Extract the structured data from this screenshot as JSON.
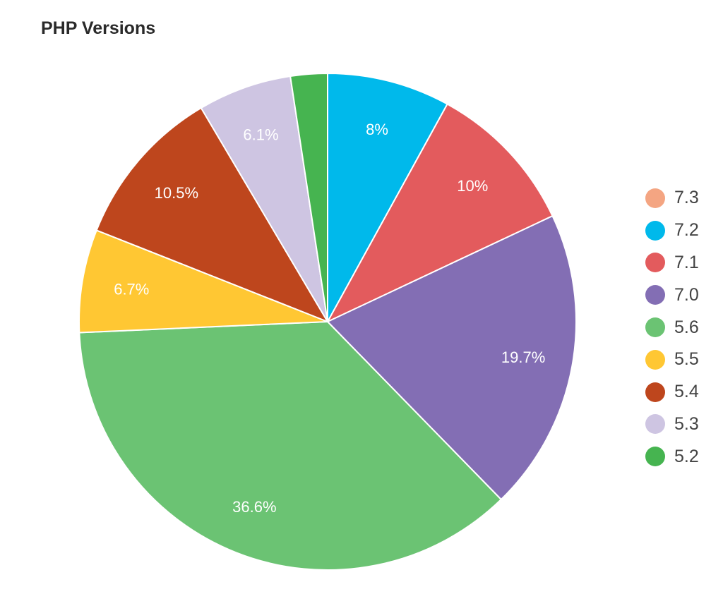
{
  "chart_data": {
    "type": "pie",
    "title": "PHP Versions",
    "legend_position": "right",
    "slices": [
      {
        "label": "7.3",
        "value": 0,
        "color": "#f4a582",
        "data_label": ""
      },
      {
        "label": "7.2",
        "value": 8,
        "color": "#00b9eb",
        "data_label": "8%"
      },
      {
        "label": "7.1",
        "value": 10,
        "color": "#e35b5d",
        "data_label": "10%"
      },
      {
        "label": "7.0",
        "value": 19.7,
        "color": "#836eb4",
        "data_label": "19.7%"
      },
      {
        "label": "5.6",
        "value": 36.6,
        "color": "#6bc373",
        "data_label": "36.6%"
      },
      {
        "label": "5.5",
        "value": 6.7,
        "color": "#ffc733",
        "data_label": "6.7%"
      },
      {
        "label": "5.4",
        "value": 10.5,
        "color": "#be461d",
        "data_label": "10.5%"
      },
      {
        "label": "5.3",
        "value": 6.1,
        "color": "#cec5e2",
        "data_label": "6.1%"
      },
      {
        "label": "5.2",
        "value": 2.4,
        "color": "#46b450",
        "data_label": ""
      }
    ]
  }
}
